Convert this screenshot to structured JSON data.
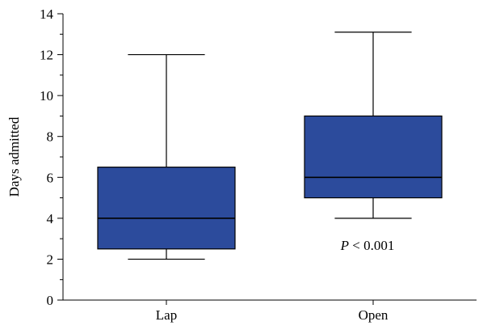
{
  "chart_data": {
    "type": "boxplot",
    "ylabel": "Days admitted",
    "xlabel": "",
    "ylim": [
      0,
      14
    ],
    "yticks": [
      "0",
      "2",
      "4",
      "6",
      "8",
      "10",
      "12",
      "14"
    ],
    "categories": [
      "Lap",
      "Open"
    ],
    "boxes": [
      {
        "category": "Lap",
        "min": 2,
        "q1": 2.5,
        "median": 4,
        "q3": 6.5,
        "max": 12
      },
      {
        "category": "Open",
        "min": 4,
        "q1": 5,
        "median": 6,
        "q3": 9,
        "max": 13.1
      }
    ],
    "annotation": {
      "p": "P",
      "rest": " < 0.001"
    },
    "box_color": "#2c4b9c",
    "grid": false,
    "legend": "none"
  }
}
